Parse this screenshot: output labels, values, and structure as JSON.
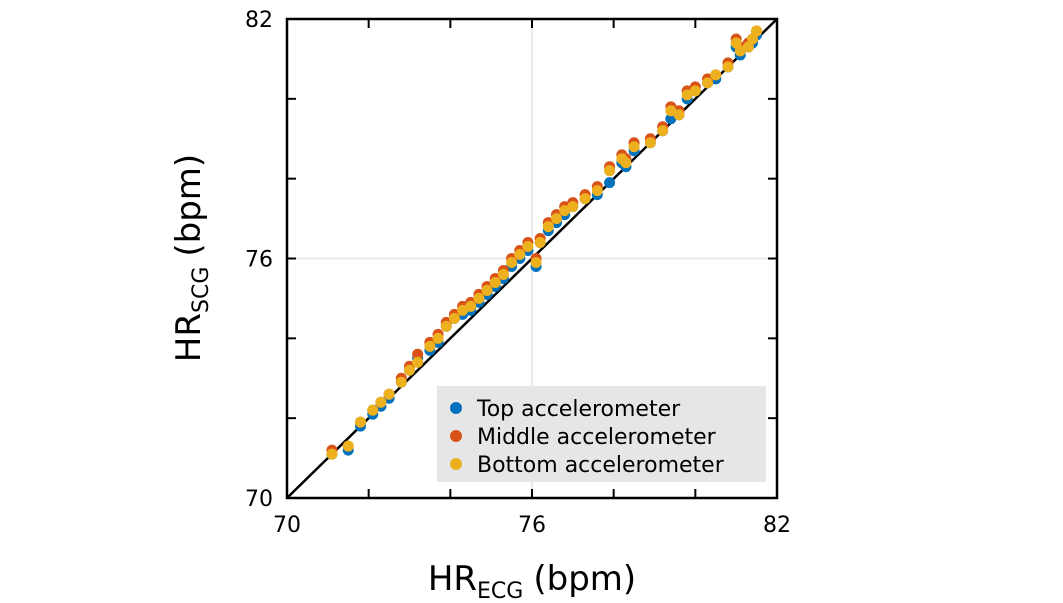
{
  "chart_data": {
    "type": "scatter",
    "title": "",
    "xlabel": {
      "main": "HR",
      "sub": "ECG",
      "unit": "(bpm)"
    },
    "ylabel": {
      "main": "HR",
      "sub": "SCG",
      "unit": "(bpm)"
    },
    "xlim": [
      70,
      82
    ],
    "ylim": [
      70,
      82
    ],
    "xticks": [
      70,
      76,
      82
    ],
    "yticks": [
      70,
      76,
      82
    ],
    "minor_ticks": [
      72,
      74,
      78,
      80
    ],
    "grid": true,
    "identity_line": true,
    "legend_position": "bottom-right",
    "series": [
      {
        "name": "Top accelerometer",
        "color": "#0072BD",
        "points": [
          [
            71.1,
            71.1
          ],
          [
            71.5,
            71.2
          ],
          [
            71.8,
            71.8
          ],
          [
            72.1,
            72.1
          ],
          [
            72.3,
            72.3
          ],
          [
            72.5,
            72.5
          ],
          [
            72.8,
            72.9
          ],
          [
            73.0,
            73.2
          ],
          [
            73.2,
            73.5
          ],
          [
            73.5,
            73.7
          ],
          [
            73.7,
            73.9
          ],
          [
            73.9,
            74.3
          ],
          [
            74.1,
            74.5
          ],
          [
            74.3,
            74.6
          ],
          [
            74.5,
            74.7
          ],
          [
            74.7,
            74.9
          ],
          [
            74.9,
            75.1
          ],
          [
            75.1,
            75.3
          ],
          [
            75.3,
            75.5
          ],
          [
            75.5,
            75.8
          ],
          [
            75.7,
            76.0
          ],
          [
            75.9,
            76.2
          ],
          [
            76.1,
            75.8
          ],
          [
            76.2,
            76.4
          ],
          [
            76.4,
            76.7
          ],
          [
            76.6,
            76.9
          ],
          [
            76.8,
            77.1
          ],
          [
            77.0,
            77.3
          ],
          [
            77.3,
            77.5
          ],
          [
            77.6,
            77.6
          ],
          [
            77.9,
            77.9
          ],
          [
            78.2,
            78.4
          ],
          [
            78.3,
            78.3
          ],
          [
            78.5,
            78.7
          ],
          [
            78.9,
            78.9
          ],
          [
            79.2,
            79.2
          ],
          [
            79.4,
            79.5
          ],
          [
            79.6,
            79.6
          ],
          [
            79.8,
            80.0
          ],
          [
            80.0,
            80.2
          ],
          [
            80.3,
            80.4
          ],
          [
            80.5,
            80.5
          ],
          [
            80.8,
            80.8
          ],
          [
            81.0,
            81.3
          ],
          [
            81.1,
            81.1
          ],
          [
            81.3,
            81.3
          ],
          [
            81.4,
            81.4
          ],
          [
            81.5,
            81.6
          ]
        ]
      },
      {
        "name": "Middle accelerometer",
        "color": "#D95319",
        "points": [
          [
            71.1,
            71.2
          ],
          [
            71.5,
            71.3
          ],
          [
            71.8,
            71.9
          ],
          [
            72.1,
            72.2
          ],
          [
            72.3,
            72.4
          ],
          [
            72.5,
            72.6
          ],
          [
            72.8,
            73.0
          ],
          [
            73.0,
            73.3
          ],
          [
            73.2,
            73.6
          ],
          [
            73.5,
            73.9
          ],
          [
            73.7,
            74.1
          ],
          [
            73.9,
            74.4
          ],
          [
            74.1,
            74.6
          ],
          [
            74.3,
            74.8
          ],
          [
            74.5,
            74.9
          ],
          [
            74.7,
            75.1
          ],
          [
            74.9,
            75.3
          ],
          [
            75.1,
            75.5
          ],
          [
            75.3,
            75.7
          ],
          [
            75.5,
            76.0
          ],
          [
            75.7,
            76.2
          ],
          [
            75.9,
            76.4
          ],
          [
            76.1,
            76.0
          ],
          [
            76.2,
            76.5
          ],
          [
            76.4,
            76.9
          ],
          [
            76.6,
            77.1
          ],
          [
            76.8,
            77.3
          ],
          [
            77.0,
            77.4
          ],
          [
            77.3,
            77.6
          ],
          [
            77.6,
            77.8
          ],
          [
            77.9,
            78.3
          ],
          [
            78.2,
            78.6
          ],
          [
            78.3,
            78.5
          ],
          [
            78.5,
            78.9
          ],
          [
            78.9,
            79.0
          ],
          [
            79.2,
            79.3
          ],
          [
            79.4,
            79.8
          ],
          [
            79.6,
            79.7
          ],
          [
            79.8,
            80.2
          ],
          [
            80.0,
            80.3
          ],
          [
            80.3,
            80.5
          ],
          [
            80.5,
            80.6
          ],
          [
            80.8,
            80.9
          ],
          [
            81.0,
            81.5
          ],
          [
            81.1,
            81.3
          ],
          [
            81.3,
            81.4
          ],
          [
            81.4,
            81.5
          ],
          [
            81.5,
            81.7
          ]
        ]
      },
      {
        "name": "Bottom accelerometer",
        "color": "#EDB120",
        "points": [
          [
            71.1,
            71.1
          ],
          [
            71.5,
            71.3
          ],
          [
            71.8,
            71.9
          ],
          [
            72.1,
            72.2
          ],
          [
            72.3,
            72.4
          ],
          [
            72.5,
            72.6
          ],
          [
            72.8,
            72.9
          ],
          [
            73.0,
            73.2
          ],
          [
            73.2,
            73.4
          ],
          [
            73.5,
            73.8
          ],
          [
            73.7,
            74.0
          ],
          [
            73.9,
            74.3
          ],
          [
            74.1,
            74.5
          ],
          [
            74.3,
            74.7
          ],
          [
            74.5,
            74.8
          ],
          [
            74.7,
            75.0
          ],
          [
            74.9,
            75.2
          ],
          [
            75.1,
            75.4
          ],
          [
            75.3,
            75.6
          ],
          [
            75.5,
            75.9
          ],
          [
            75.7,
            76.1
          ],
          [
            75.9,
            76.3
          ],
          [
            76.1,
            75.9
          ],
          [
            76.2,
            76.4
          ],
          [
            76.4,
            76.8
          ],
          [
            76.6,
            77.0
          ],
          [
            76.8,
            77.2
          ],
          [
            77.0,
            77.3
          ],
          [
            77.3,
            77.5
          ],
          [
            77.6,
            77.7
          ],
          [
            77.9,
            78.2
          ],
          [
            78.2,
            78.5
          ],
          [
            78.3,
            78.4
          ],
          [
            78.5,
            78.8
          ],
          [
            78.9,
            78.9
          ],
          [
            79.2,
            79.2
          ],
          [
            79.4,
            79.7
          ],
          [
            79.6,
            79.6
          ],
          [
            79.8,
            80.1
          ],
          [
            80.0,
            80.2
          ],
          [
            80.3,
            80.4
          ],
          [
            80.5,
            80.6
          ],
          [
            80.8,
            80.8
          ],
          [
            81.0,
            81.4
          ],
          [
            81.1,
            81.2
          ],
          [
            81.3,
            81.3
          ],
          [
            81.4,
            81.5
          ],
          [
            81.5,
            81.7
          ]
        ]
      }
    ]
  }
}
